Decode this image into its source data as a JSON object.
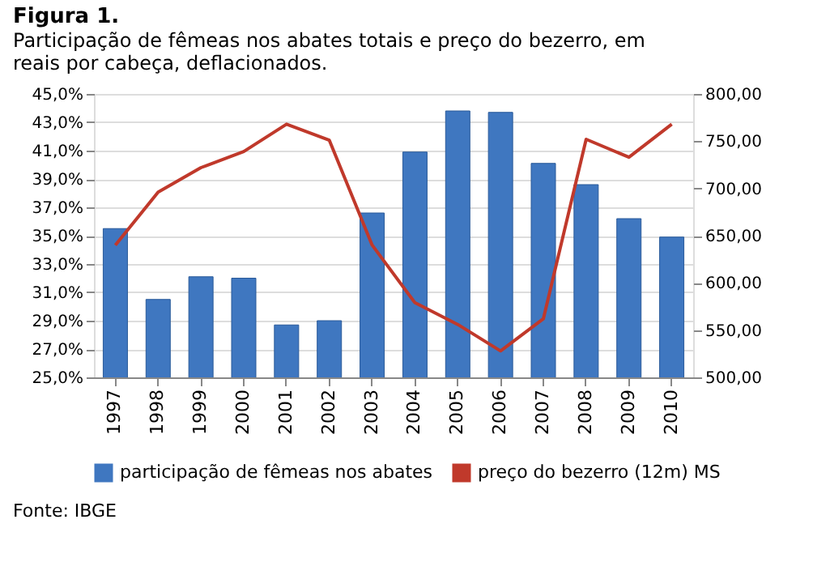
{
  "chart_data": {
    "type": "bar",
    "title": "Figura 1.",
    "subtitle": "Participação  de fêmeas nos abates totais  e preço do bezerro, em reais por cabeça,  deflacionados.",
    "categories": [
      "1997",
      "1998",
      "1999",
      "2000",
      "2001",
      "2002",
      "2003",
      "2004",
      "2005",
      "2006",
      "2007",
      "2008",
      "2009",
      "2010"
    ],
    "series": [
      {
        "name": "participação de fêmeas nos abates",
        "color": "#3f77c0",
        "values": [
          35.5,
          30.5,
          32.1,
          32.0,
          28.7,
          29.0,
          36.6,
          40.9,
          43.8,
          43.7,
          40.1,
          38.6,
          36.2,
          34.9
        ]
      },
      {
        "name": "preço do bezerro (12m) MS",
        "type": "line",
        "axis": "y2",
        "color": "#c0392b",
        "values": [
          640,
          696,
          722,
          739,
          768,
          751,
          640,
          579,
          556,
          528,
          562,
          752,
          733,
          768
        ]
      }
    ],
    "ylim": [
      25,
      45
    ],
    "yticks": [
      {
        "value": 25,
        "label": "25,0%"
      },
      {
        "value": 27,
        "label": "27,0%"
      },
      {
        "value": 29,
        "label": "29,0%"
      },
      {
        "value": 31,
        "label": "31,0%"
      },
      {
        "value": 33,
        "label": "33,0%"
      },
      {
        "value": 35,
        "label": "35,0%"
      },
      {
        "value": 37,
        "label": "37,0%"
      },
      {
        "value": 39,
        "label": "39,0%"
      },
      {
        "value": 41,
        "label": "41,0%"
      },
      {
        "value": 43,
        "label": "43,0%"
      },
      {
        "value": 45,
        "label": "45,0%"
      }
    ],
    "y2lim": [
      500,
      800
    ],
    "y2ticks": [
      {
        "value": 500,
        "label": "500,00"
      },
      {
        "value": 550,
        "label": "550,00"
      },
      {
        "value": 600,
        "label": "600,00"
      },
      {
        "value": 650,
        "label": "650,00"
      },
      {
        "value": 700,
        "label": "700,00"
      },
      {
        "value": 750,
        "label": "750,00"
      },
      {
        "value": 800,
        "label": "800,00"
      }
    ],
    "grid": "y",
    "legend": "bottom",
    "marker": "none",
    "line_style": "solid",
    "annotations": [
      "Fonte: IBGE"
    ]
  }
}
